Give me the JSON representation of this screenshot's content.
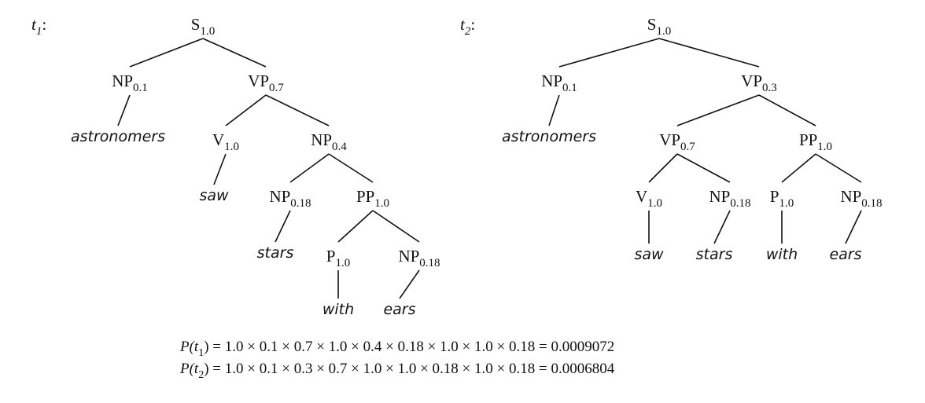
{
  "trees": [
    {
      "name": {
        "letter": "t",
        "sub": "1",
        "suffix": ":"
      },
      "nodes": [
        {
          "id": "S",
          "label": "S",
          "sub": "1.0"
        },
        {
          "id": "NP1",
          "label": "NP",
          "sub": "0.1"
        },
        {
          "id": "VP",
          "label": "VP",
          "sub": "0.7"
        },
        {
          "id": "w_astr",
          "word": "astronomers"
        },
        {
          "id": "V",
          "label": "V",
          "sub": "1.0"
        },
        {
          "id": "NP2",
          "label": "NP",
          "sub": "0.4"
        },
        {
          "id": "w_saw",
          "word": "saw"
        },
        {
          "id": "NP3",
          "label": "NP",
          "sub": "0.18"
        },
        {
          "id": "PP",
          "label": "PP",
          "sub": "1.0"
        },
        {
          "id": "w_stars",
          "word": "stars"
        },
        {
          "id": "P",
          "label": "P",
          "sub": "1.0"
        },
        {
          "id": "NP4",
          "label": "NP",
          "sub": "0.18"
        },
        {
          "id": "w_with",
          "word": "with"
        },
        {
          "id": "w_ears",
          "word": "ears"
        }
      ]
    },
    {
      "name": {
        "letter": "t",
        "sub": "2",
        "suffix": ":"
      },
      "nodes": [
        {
          "id": "S",
          "label": "S",
          "sub": "1.0"
        },
        {
          "id": "NP1",
          "label": "NP",
          "sub": "0.1"
        },
        {
          "id": "VP1",
          "label": "VP",
          "sub": "0.3"
        },
        {
          "id": "w_astr",
          "word": "astronomers"
        },
        {
          "id": "VP2",
          "label": "VP",
          "sub": "0.7"
        },
        {
          "id": "PP",
          "label": "PP",
          "sub": "1.0"
        },
        {
          "id": "V",
          "label": "V",
          "sub": "1.0"
        },
        {
          "id": "NP2",
          "label": "NP",
          "sub": "0.18"
        },
        {
          "id": "P",
          "label": "P",
          "sub": "1.0"
        },
        {
          "id": "NP3",
          "label": "NP",
          "sub": "0.18"
        },
        {
          "id": "w_saw",
          "word": "saw"
        },
        {
          "id": "w_stars",
          "word": "stars"
        },
        {
          "id": "w_with",
          "word": "with"
        },
        {
          "id": "w_ears",
          "word": "ears"
        }
      ]
    }
  ],
  "formulas": [
    {
      "prefix": "P(t",
      "sub": "1",
      "rest": ") = 1.0 × 0.1 × 0.7 × 1.0 × 0.4 × 0.18 × 1.0 × 1.0 × 0.18 = 0.0009072"
    },
    {
      "prefix": "P(t",
      "sub": "2",
      "rest": ") = 1.0 × 0.1 × 0.3 × 0.7 × 1.0 × 1.0 × 0.18 × 1.0 × 0.18 = 0.0006804"
    }
  ]
}
